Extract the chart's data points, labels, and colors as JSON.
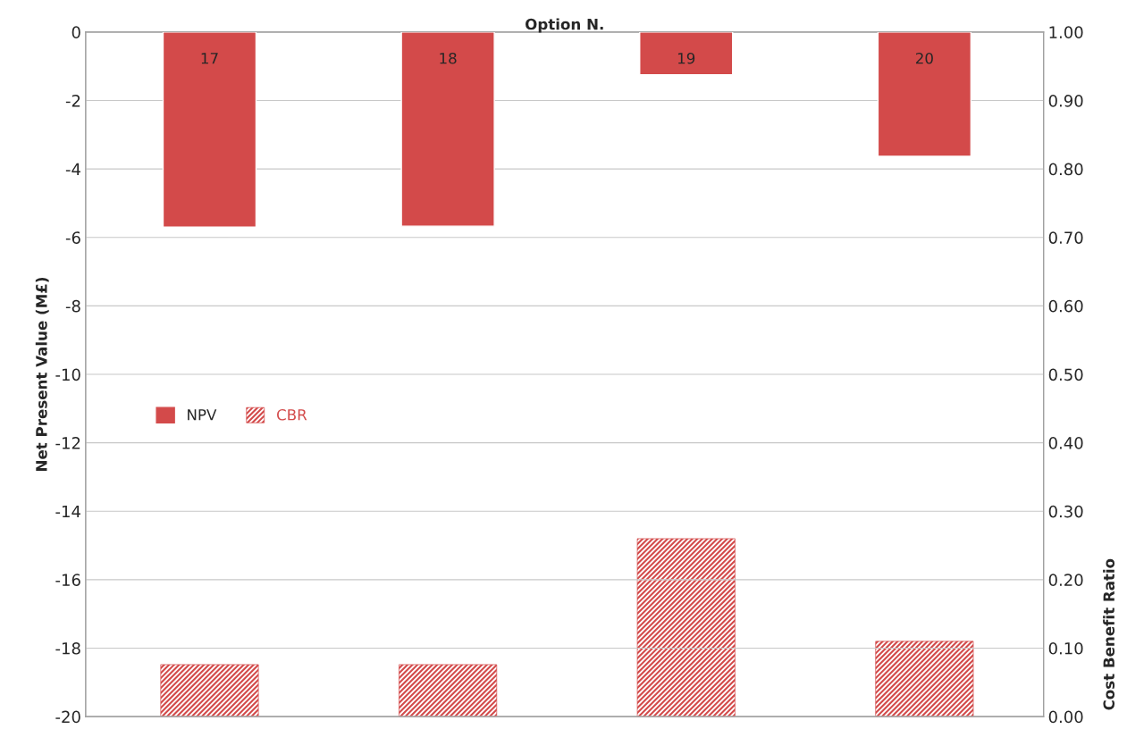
{
  "chart_data": {
    "type": "bar",
    "xlabel": "Option N.",
    "ylabel": "Net Present Value (M£)",
    "y2label": "Cost Benefit Ratio",
    "categories": [
      "17",
      "18",
      "19",
      "20"
    ],
    "series": [
      {
        "name": "NPV",
        "color": "#d34a4a",
        "values": [
          -5.7,
          -5.67,
          -1.25,
          -3.63
        ]
      },
      {
        "name": "CBR",
        "color": "#d34a4a",
        "axis": "y2",
        "values": [
          0.076,
          0.076,
          0.26,
          0.11
        ]
      }
    ],
    "ylim": [
      -20,
      0
    ],
    "yticks": [
      -20,
      -18,
      -16,
      -14,
      -12,
      -10,
      -8,
      -6,
      -4,
      -2,
      0
    ],
    "y2lim": [
      0,
      1
    ],
    "y2ticks": [
      {
        "value": 0,
        "label": "0.00"
      },
      {
        "value": 0.1,
        "label": "0.10"
      },
      {
        "value": 0.2,
        "label": "0.20"
      },
      {
        "value": 0.3,
        "label": "0.30"
      },
      {
        "value": 0.4,
        "label": "0.40"
      },
      {
        "value": 0.5,
        "label": "0.50"
      },
      {
        "value": 0.6,
        "label": "0.60"
      },
      {
        "value": 0.7,
        "label": "0.70"
      },
      {
        "value": 0.8,
        "label": "0.80"
      },
      {
        "value": 0.9,
        "label": "0.90"
      },
      {
        "value": 1,
        "label": "1.00"
      }
    ],
    "grid": "y",
    "legend": "center left"
  }
}
